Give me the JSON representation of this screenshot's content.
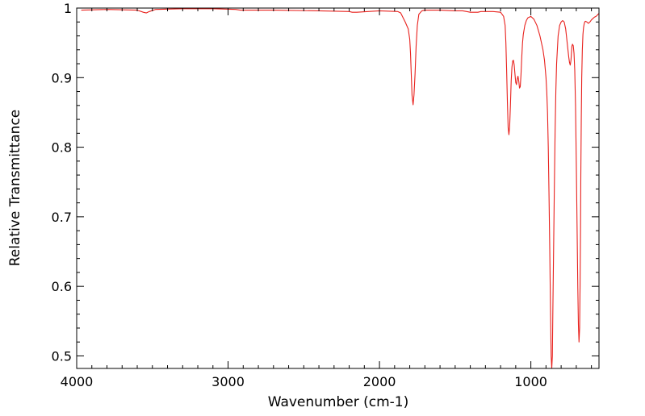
{
  "chart_data": {
    "type": "line",
    "title": "",
    "xlabel": "Wavenumber (cm-1)",
    "ylabel": "Relative Transmittance",
    "xlim": [
      4000,
      550
    ],
    "ylim": [
      0.482,
      1.0
    ],
    "x_reversed": true,
    "grid": false,
    "legend": "none",
    "x_ticks": [
      {
        "value": 4000,
        "label": "4000"
      },
      {
        "value": 3000,
        "label": "3000"
      },
      {
        "value": 2000,
        "label": "2000"
      },
      {
        "value": 1000,
        "label": "1000"
      }
    ],
    "y_ticks": [
      {
        "value": 0.5,
        "label": "0.5"
      },
      {
        "value": 0.6,
        "label": "0.6"
      },
      {
        "value": 0.7,
        "label": "0.7"
      },
      {
        "value": 0.8,
        "label": "0.8"
      },
      {
        "value": 0.9,
        "label": "0.9"
      },
      {
        "value": 1.0,
        "label": "1"
      }
    ],
    "series": [
      {
        "color": "#e8211d",
        "x": [
          3970,
          3800,
          3600,
          3560,
          3540,
          3520,
          3480,
          3300,
          3100,
          2950,
          2920,
          2900,
          2700,
          2400,
          2200,
          2180,
          2150,
          2000,
          1880,
          1860,
          1830,
          1810,
          1800,
          1795,
          1790,
          1785,
          1778,
          1772,
          1765,
          1758,
          1750,
          1740,
          1720,
          1700,
          1600,
          1500,
          1450,
          1400,
          1350,
          1330,
          1300,
          1250,
          1200,
          1180,
          1170,
          1165,
          1160,
          1155,
          1150,
          1145,
          1140,
          1135,
          1130,
          1125,
          1120,
          1115,
          1110,
          1105,
          1100,
          1095,
          1090,
          1085,
          1080,
          1075,
          1070,
          1065,
          1060,
          1055,
          1050,
          1040,
          1030,
          1020,
          1000,
          980,
          960,
          940,
          920,
          910,
          900,
          895,
          890,
          885,
          880,
          875,
          870,
          866,
          862,
          858,
          855,
          850,
          845,
          840,
          835,
          830,
          820,
          810,
          800,
          790,
          780,
          770,
          760,
          750,
          745,
          740,
          735,
          732,
          729,
          725,
          720,
          715,
          710,
          705,
          700,
          695,
          690,
          686,
          682,
          678,
          675,
          672,
          670,
          667,
          664,
          660,
          656,
          652,
          648,
          644,
          640,
          630,
          620,
          610,
          600,
          590,
          580,
          570,
          560,
          552
        ],
        "y": [
          0.997,
          0.998,
          0.997,
          0.994,
          0.993,
          0.995,
          0.998,
          0.999,
          0.999,
          0.998,
          0.997,
          0.997,
          0.997,
          0.996,
          0.995,
          0.994,
          0.994,
          0.996,
          0.995,
          0.993,
          0.98,
          0.97,
          0.955,
          0.935,
          0.905,
          0.875,
          0.861,
          0.875,
          0.905,
          0.945,
          0.975,
          0.991,
          0.996,
          0.997,
          0.997,
          0.996,
          0.996,
          0.994,
          0.994,
          0.995,
          0.995,
          0.995,
          0.994,
          0.988,
          0.975,
          0.95,
          0.91,
          0.865,
          0.828,
          0.818,
          0.83,
          0.86,
          0.895,
          0.915,
          0.924,
          0.925,
          0.918,
          0.905,
          0.893,
          0.89,
          0.898,
          0.902,
          0.895,
          0.885,
          0.887,
          0.905,
          0.93,
          0.95,
          0.962,
          0.975,
          0.982,
          0.986,
          0.988,
          0.984,
          0.975,
          0.96,
          0.94,
          0.925,
          0.9,
          0.88,
          0.85,
          0.8,
          0.73,
          0.65,
          0.56,
          0.5,
          0.482,
          0.5,
          0.56,
          0.65,
          0.74,
          0.82,
          0.88,
          0.92,
          0.96,
          0.975,
          0.98,
          0.982,
          0.98,
          0.97,
          0.95,
          0.93,
          0.922,
          0.918,
          0.925,
          0.935,
          0.945,
          0.948,
          0.946,
          0.935,
          0.91,
          0.86,
          0.78,
          0.69,
          0.6,
          0.545,
          0.52,
          0.54,
          0.6,
          0.68,
          0.76,
          0.84,
          0.9,
          0.94,
          0.962,
          0.972,
          0.977,
          0.98,
          0.981,
          0.98,
          0.978,
          0.98,
          0.983,
          0.985,
          0.987,
          0.988,
          0.99,
          0.992
        ]
      }
    ]
  }
}
